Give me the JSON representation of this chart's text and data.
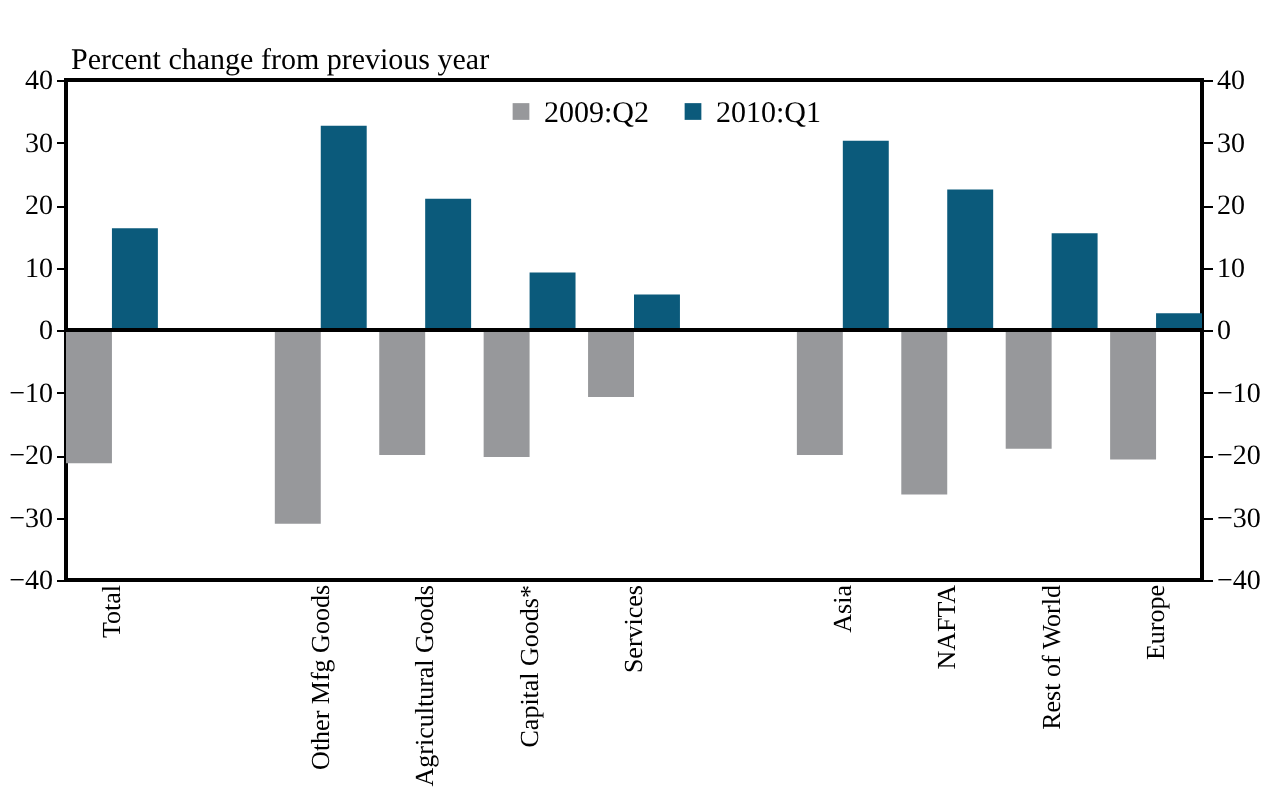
{
  "chart_data": {
    "type": "bar",
    "ylabel": "Percent change from previous year",
    "categories": [
      "Total",
      null,
      "Other Mfg Goods",
      "Agricultural Goods",
      "Capital Goods*",
      "Services",
      null,
      "Asia",
      "NAFTA",
      "Rest of World",
      "Europe"
    ],
    "series": [
      {
        "name": "2009:Q2",
        "color": "#97989b",
        "values": [
          -21.3,
          null,
          -31,
          -20,
          -20.3,
          -10.7,
          null,
          -20,
          -26.3,
          -19,
          -20.7
        ]
      },
      {
        "name": "2010:Q1",
        "color": "#0b5a7b",
        "values": [
          16.3,
          null,
          32.7,
          21,
          9.2,
          5.7,
          null,
          30.3,
          22.5,
          15.5,
          2.7
        ]
      }
    ],
    "ylim": [
      -40,
      40
    ],
    "yticks": [
      -40,
      -30,
      -20,
      -10,
      0,
      10,
      20,
      30,
      40
    ],
    "y2lim": [
      -40,
      40
    ],
    "y2ticks": [
      -40,
      -30,
      -20,
      -10,
      0,
      10,
      20,
      30,
      40
    ],
    "ref_lines": [
      {
        "axis": "y",
        "value": 0,
        "color": "#000000"
      }
    ],
    "grid": false,
    "legend": "top"
  }
}
